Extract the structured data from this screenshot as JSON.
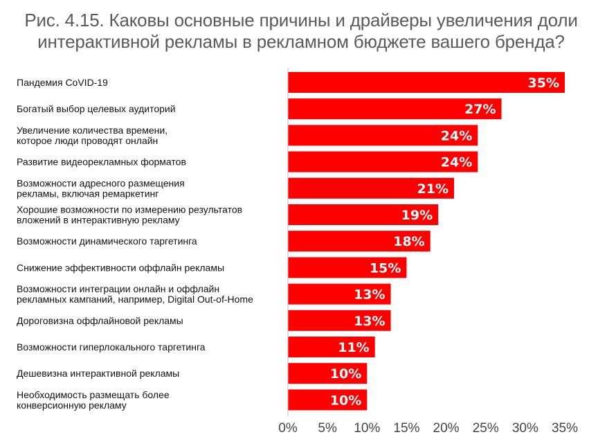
{
  "title_lines": [
    "Рис. 4.15. Каковы основные причины и драйверы увеличения доли",
    "интерактивной рекламы в рекламном бюджете вашего бренда?"
  ],
  "colors": {
    "bar": "#ff0000",
    "text": "#111111",
    "title": "#5a5a5a",
    "axis": "#bfbfbf"
  },
  "chart_data": {
    "type": "bar",
    "orientation": "horizontal",
    "title": "Рис. 4.15. Каковы основные причины и драйверы увеличения доли интерактивной рекламы в рекламном бюджете вашего бренда?",
    "categories": [
      [
        "Пандемия CoVID-19"
      ],
      [
        "Богатый выбор целевых аудиторий"
      ],
      [
        "Увеличение количества времени,",
        "которое люди проводят онлайн"
      ],
      [
        "Развитие видеорекламных форматов"
      ],
      [
        "Возможности адресного размещения",
        "рекламы, включая ремаркетинг"
      ],
      [
        "Хорошие возможности по измерению результатов",
        "вложений в интерактивную рекламу"
      ],
      [
        "Возможности динамического таргетинга"
      ],
      [
        "Снижение эффективности оффлайн рекламы"
      ],
      [
        "Возможности интеграции онлайн и оффлайн",
        "рекламных кампаний, например, Digital Out-of-Home"
      ],
      [
        "Дороговизна оффлайновой рекламы"
      ],
      [
        "Возможности гиперлокального таргетинга"
      ],
      [
        "Дешевизна интерактивной рекламы"
      ],
      [
        "Необходимость размещать более",
        "конверсионную рекламу"
      ]
    ],
    "values": [
      35,
      27,
      24,
      24,
      21,
      19,
      18,
      15,
      13,
      13,
      11,
      10,
      10
    ],
    "value_labels": [
      "35%",
      "27%",
      "24%",
      "24%",
      "21%",
      "19%",
      "18%",
      "15%",
      "13%",
      "13%",
      "11%",
      "10%",
      "10%"
    ],
    "xlim": [
      0,
      35
    ],
    "xticks": [
      0,
      5,
      10,
      15,
      20,
      25,
      30,
      35
    ],
    "xtick_labels": [
      "0%",
      "5%",
      "10%",
      "15%",
      "20%",
      "25%",
      "30%",
      "35%"
    ],
    "grid": false,
    "legend": "none"
  }
}
